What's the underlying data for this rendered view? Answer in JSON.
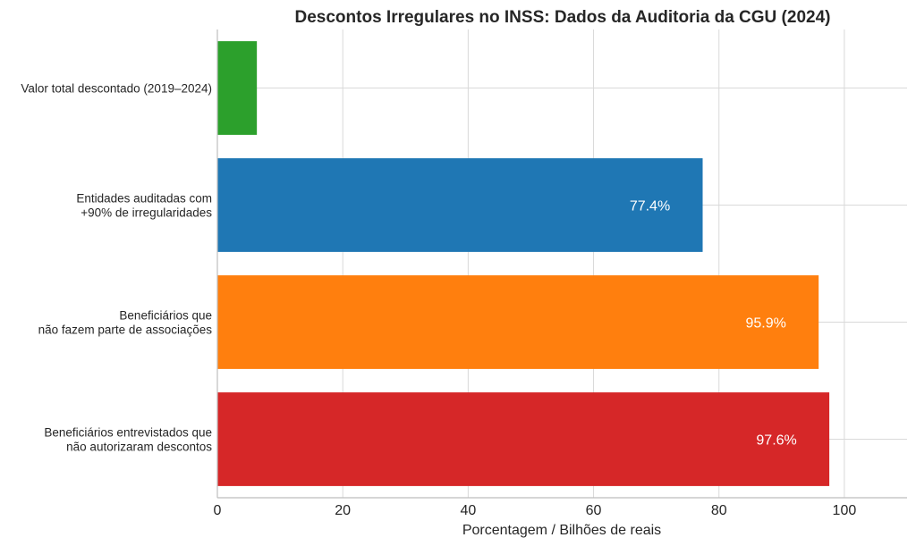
{
  "chart_data": {
    "type": "bar",
    "orientation": "horizontal",
    "title": "Descontos Irregulares no INSS: Dados da Auditoria da CGU (2024)",
    "xlabel": "Porcentagem / Bilhões de reais",
    "ylabel": "",
    "xlim": [
      0,
      110
    ],
    "xticks": [
      0,
      20,
      40,
      60,
      80,
      100
    ],
    "grid": true,
    "categories": [
      [
        "Valor total descontado (2019–2024)"
      ],
      [
        "Entidades auditadas com",
        "+90% de irregularidades"
      ],
      [
        "Beneficiários que",
        "não fazem parte de associações"
      ],
      [
        "Beneficiários entrevistados que",
        "não autorizaram descontos"
      ]
    ],
    "values": [
      6.3,
      77.4,
      95.9,
      97.6
    ],
    "data_labels": [
      "",
      "77.4%",
      "95.9%",
      "97.6%"
    ],
    "colors": [
      "#2ca02c",
      "#1f77b4",
      "#ff7f0e",
      "#d62728"
    ]
  }
}
